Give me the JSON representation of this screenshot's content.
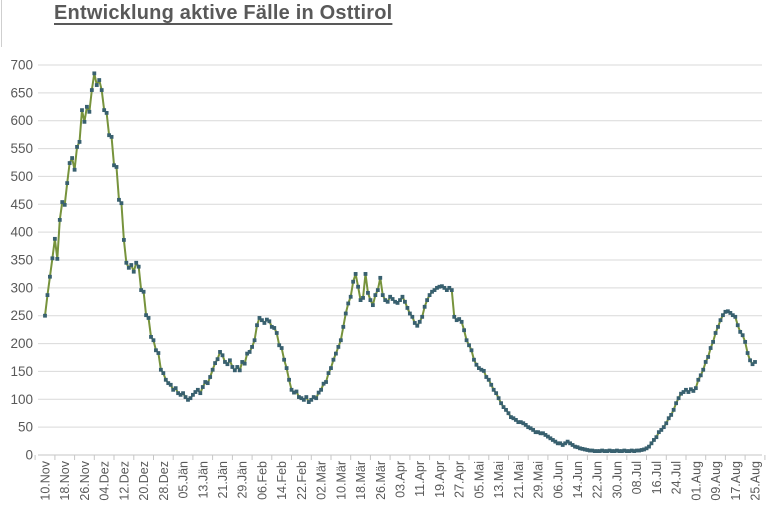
{
  "title": "Entwicklung aktive Fälle in Osttirol",
  "colors": {
    "title": "#595959",
    "line": "#77933C",
    "marker": "#38606F",
    "gridline": "#d9d9d9",
    "axis_line": "#c6c6c6",
    "tick_mark": "#c6c6c6",
    "tick_label": "#595959",
    "background": "#ffffff"
  },
  "chart_data": {
    "type": "line",
    "title": "Entwicklung aktive Fälle in Osttirol",
    "xlabel": "",
    "ylabel": "",
    "ylim": [
      0,
      700
    ],
    "y_tick_step": 50,
    "y_ticks": [
      0,
      50,
      100,
      150,
      200,
      250,
      300,
      350,
      400,
      450,
      500,
      550,
      600,
      650,
      700
    ],
    "grid": "horizontal",
    "legend": "none",
    "x_tick_interval_days": 8,
    "x_tick_labels": [
      "10.Nov",
      "18.Nov",
      "26.Nov",
      "04.Dez",
      "12.Dez",
      "20.Dez",
      "28.Dez",
      "05.Jän",
      "13.Jän",
      "21.Jän",
      "29.Jän",
      "06.Feb",
      "14.Feb",
      "22.Feb",
      "02.Mär",
      "10.Mär",
      "18.Mär",
      "26.Mär",
      "03.Apr",
      "11.Apr",
      "19.Apr",
      "27.Apr",
      "05.Mai",
      "13.Mai",
      "21.Mai",
      "29.Mai",
      "06.Jun",
      "14.Jun",
      "22.Jun",
      "30.Jun",
      "08.Jul",
      "16.Jul",
      "24.Jul",
      "01.Aug",
      "09.Aug",
      "17.Aug",
      "25.Aug"
    ],
    "series_name": "aktive Fälle",
    "values": [
      250,
      287,
      320,
      353,
      388,
      352,
      422,
      454,
      449,
      488,
      524,
      533,
      512,
      553,
      562,
      619,
      598,
      625,
      616,
      655,
      685,
      664,
      673,
      655,
      619,
      614,
      574,
      571,
      520,
      517,
      458,
      452,
      386,
      345,
      336,
      341,
      329,
      345,
      338,
      296,
      293,
      251,
      246,
      212,
      206,
      188,
      183,
      153,
      147,
      135,
      129,
      126,
      117,
      120,
      111,
      108,
      111,
      104,
      99,
      102,
      108,
      113,
      117,
      111,
      122,
      131,
      129,
      140,
      153,
      165,
      172,
      185,
      179,
      167,
      163,
      170,
      158,
      152,
      158,
      152,
      167,
      164,
      182,
      185,
      194,
      206,
      233,
      246,
      242,
      237,
      243,
      240,
      230,
      228,
      219,
      197,
      192,
      171,
      156,
      135,
      117,
      112,
      114,
      104,
      102,
      99,
      104,
      95,
      99,
      104,
      102,
      112,
      117,
      128,
      131,
      147,
      156,
      171,
      182,
      194,
      206,
      230,
      254,
      272,
      284,
      311,
      325,
      302,
      278,
      282,
      325,
      291,
      278,
      269,
      287,
      296,
      318,
      287,
      278,
      275,
      284,
      280,
      275,
      273,
      278,
      284,
      275,
      264,
      254,
      248,
      237,
      232,
      239,
      248,
      266,
      278,
      287,
      293,
      296,
      300,
      302,
      303,
      300,
      296,
      300,
      296,
      248,
      242,
      244,
      239,
      224,
      206,
      197,
      188,
      171,
      162,
      156,
      153,
      151,
      140,
      135,
      126,
      117,
      111,
      102,
      93,
      86,
      81,
      75,
      68,
      66,
      63,
      59,
      59,
      57,
      54,
      50,
      48,
      45,
      41,
      41,
      39,
      39,
      36,
      33,
      30,
      27,
      24,
      21,
      21,
      18,
      21,
      24,
      21,
      18,
      15,
      14,
      12,
      11,
      10,
      9,
      8,
      8,
      7,
      7,
      7,
      8,
      7,
      7,
      8,
      7,
      7,
      8,
      7,
      7,
      8,
      7,
      7,
      8,
      7,
      8,
      8,
      9,
      10,
      12,
      15,
      21,
      27,
      32,
      41,
      45,
      50,
      57,
      66,
      72,
      81,
      93,
      102,
      110,
      113,
      117,
      113,
      118,
      115,
      120,
      135,
      143,
      153,
      167,
      176,
      192,
      203,
      219,
      230,
      242,
      251,
      257,
      258,
      255,
      251,
      248,
      233,
      221,
      215,
      203,
      183,
      170,
      163,
      167
    ]
  }
}
